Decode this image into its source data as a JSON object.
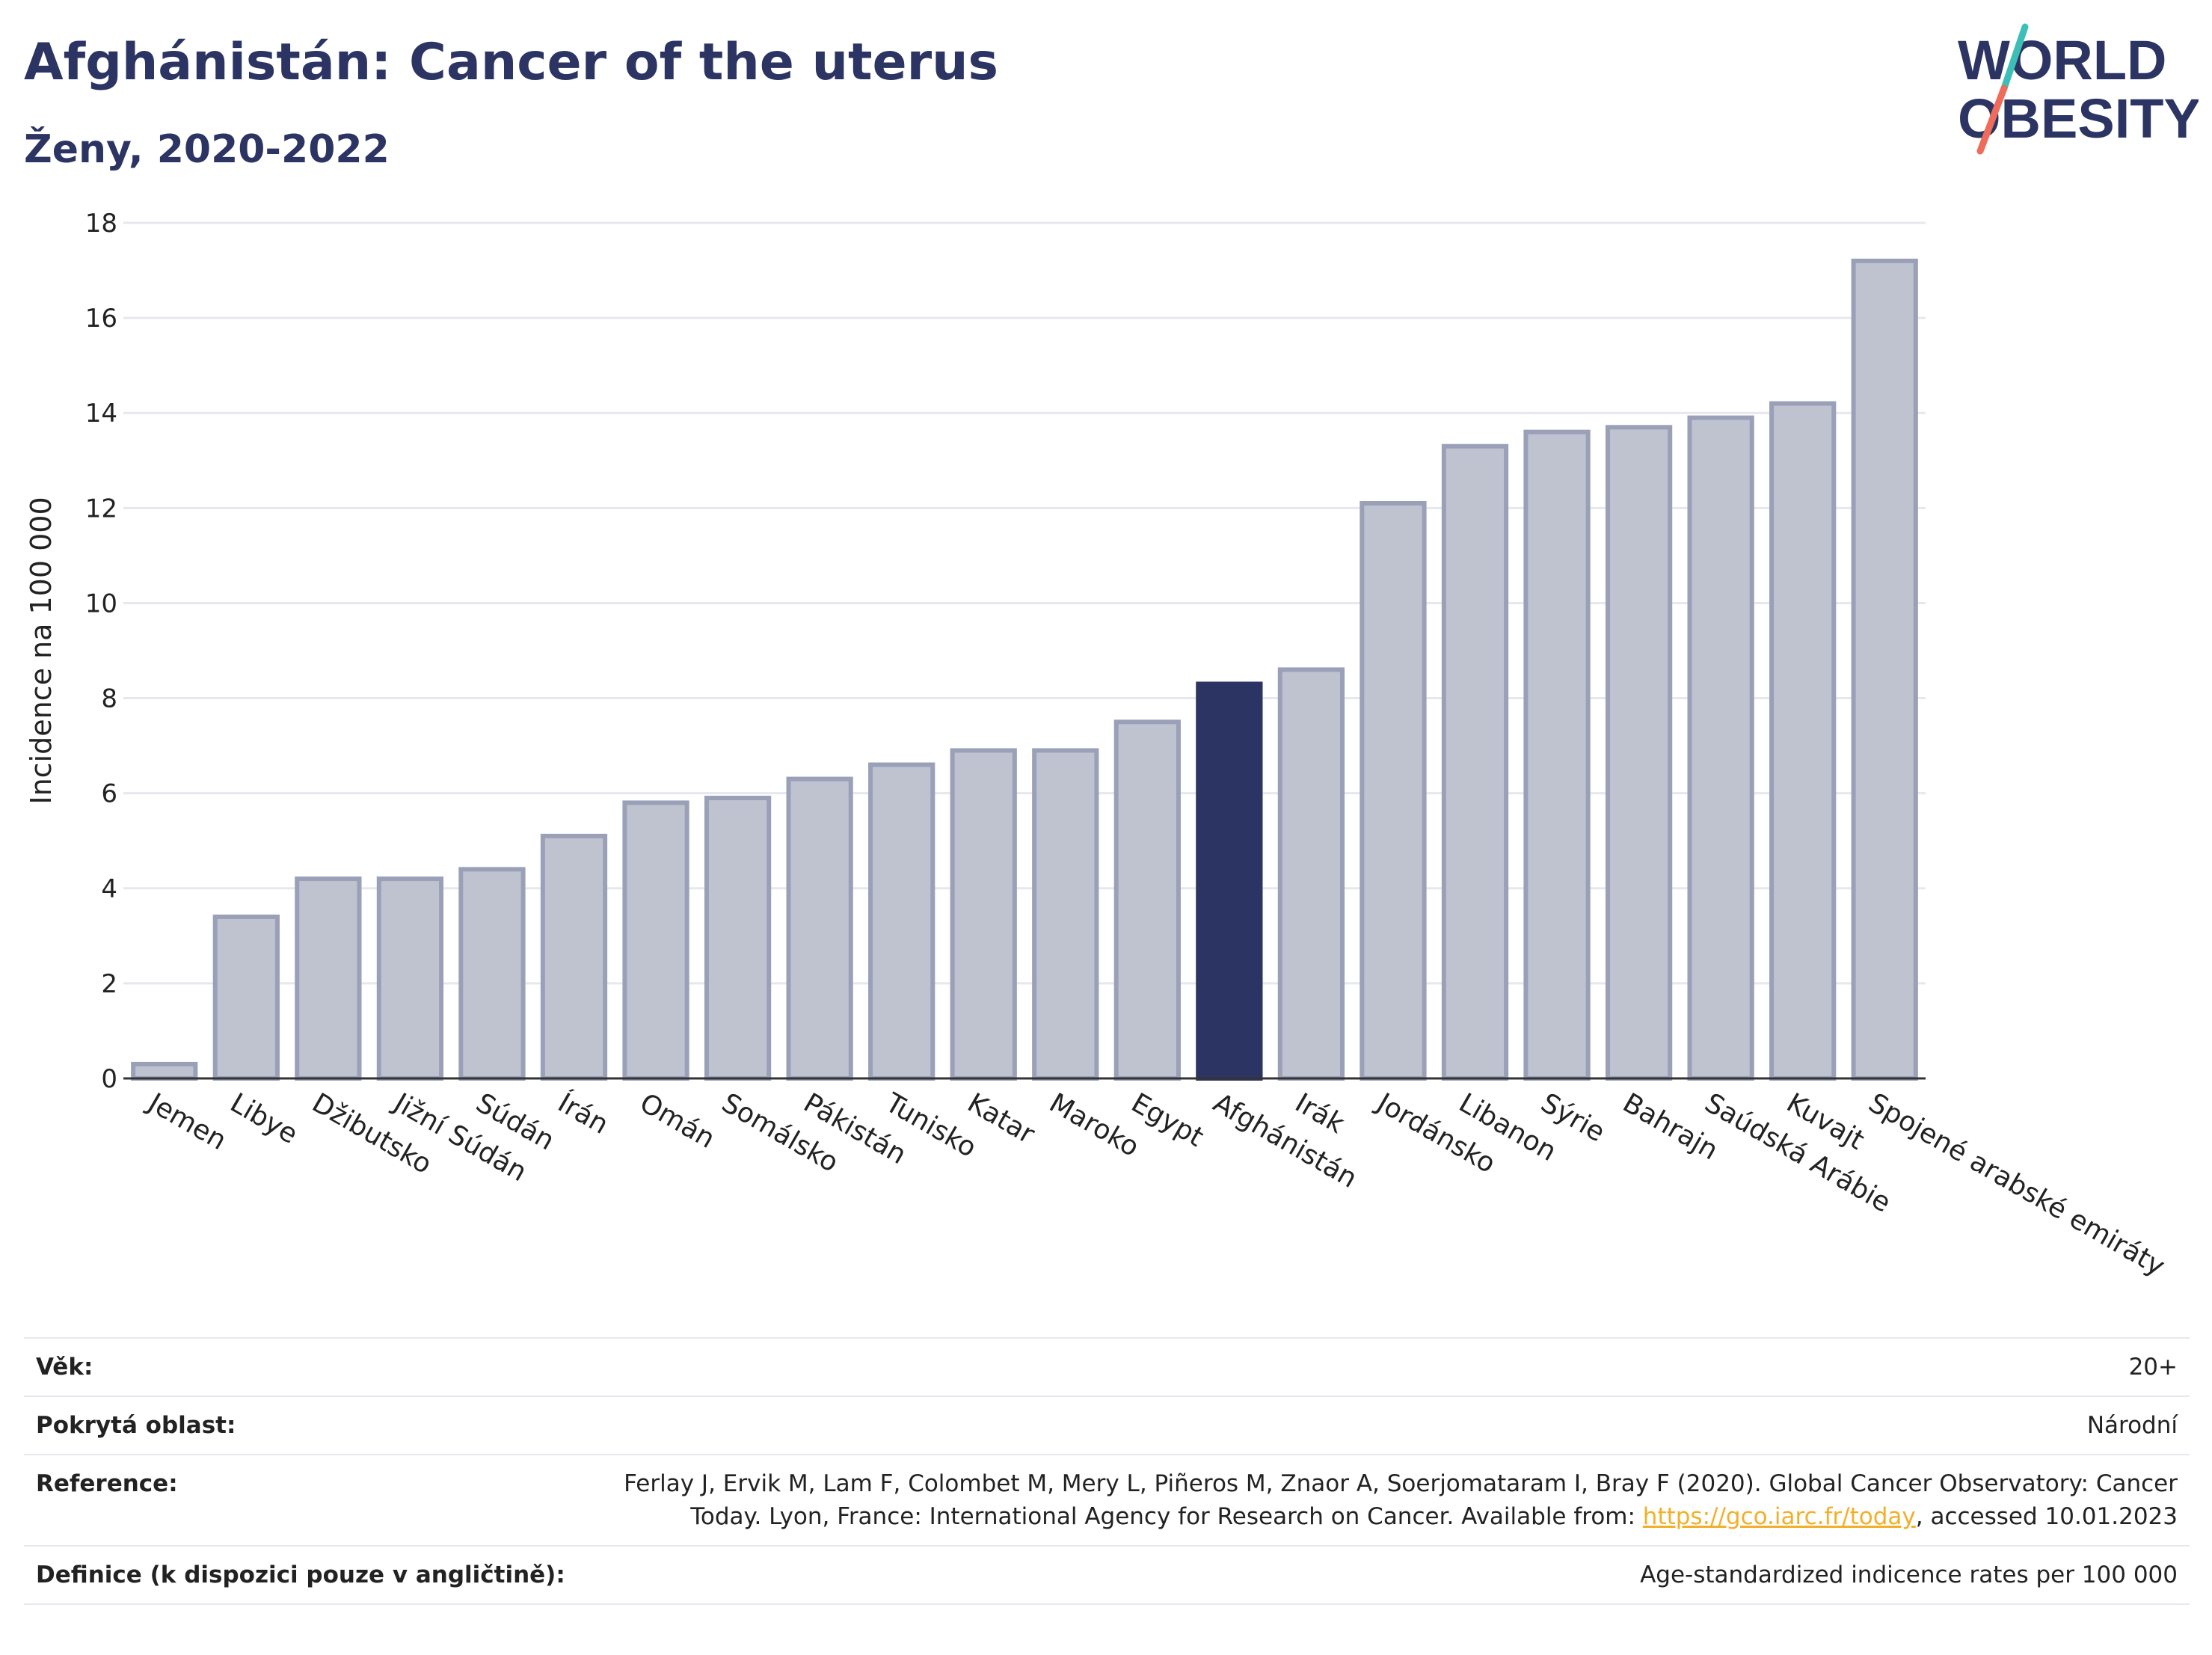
{
  "header": {
    "title": "Afghánistán: Cancer of the uterus",
    "subtitle": "Ženy, 2020-2022"
  },
  "logo": {
    "line1": "WORLD",
    "line2": "OBESITY",
    "colors": {
      "text": "#2b3462",
      "slash_top": "#3dbfb8",
      "slash_bottom": "#ef6b5a"
    }
  },
  "colors": {
    "bar_default_fill": "#bfc3d0",
    "bar_default_stroke": "#9aa0b8",
    "bar_highlight": "#2b3462",
    "grid": "#e7e8ee"
  },
  "chart_data": {
    "type": "bar",
    "title": "",
    "xlabel": "",
    "ylabel": "Incidence na 100 000",
    "ylim": [
      0,
      18
    ],
    "yticks": [
      0,
      2,
      4,
      6,
      8,
      10,
      12,
      14,
      16,
      18
    ],
    "grid": true,
    "highlight": "Afghánistán",
    "categories": [
      "Jemen",
      "Libye",
      "Džibutsko",
      "Jižní Súdán",
      "Súdán",
      "Írán",
      "Omán",
      "Somálsko",
      "Pákistán",
      "Tunisko",
      "Katar",
      "Maroko",
      "Egypt",
      "Afghánistán",
      "Irák",
      "Jordánsko",
      "Libanon",
      "Sýrie",
      "Bahrajn",
      "Saúdská Arábie",
      "Kuvajt",
      "Spojené arabské emiráty"
    ],
    "values": [
      0.3,
      3.4,
      4.2,
      4.2,
      4.4,
      5.1,
      5.8,
      5.9,
      6.3,
      6.6,
      6.9,
      6.9,
      7.5,
      8.3,
      8.6,
      12.1,
      13.3,
      13.6,
      13.7,
      13.9,
      14.2,
      17.2
    ]
  },
  "meta": {
    "age": {
      "label": "Věk:",
      "value": "20+"
    },
    "coverage": {
      "label": "Pokrytá oblast:",
      "value": "Národní"
    },
    "reference": {
      "label": "Reference:",
      "line1": "Ferlay J, Ervik M, Lam F, Colombet M, Mery L, Piñeros M, Znaor A, Soerjomataram I, Bray F (2020). Global Cancer Observatory: Cancer",
      "line2_prefix": "Today. Lyon, France: International Agency for Research on Cancer. Available from: ",
      "link": "https://gco.iarc.fr/today",
      "line2_suffix": ", accessed 10.01.2023"
    },
    "definition": {
      "label": "Definice (k dispozici pouze v angličtině):",
      "value": "Age-standardized indicence rates per 100 000"
    }
  }
}
